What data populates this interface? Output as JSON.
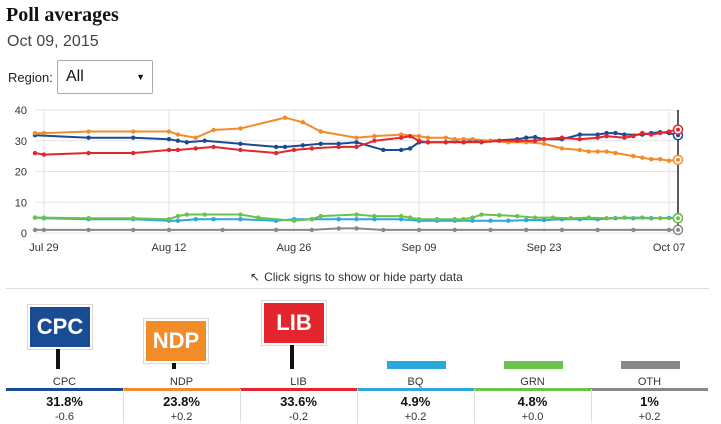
{
  "header": {
    "title": "Poll averages",
    "date": "Oct 09, 2015"
  },
  "region": {
    "label": "Region:",
    "value": "All"
  },
  "hint": "Click signs to show or hide party data",
  "chart_data": {
    "type": "line",
    "x_labels": [
      "Jul 29",
      "Aug 12",
      "Aug 26",
      "Sep 09",
      "Sep 23",
      "Oct 07"
    ],
    "x_label_days": [
      0,
      14,
      28,
      42,
      56,
      70
    ],
    "ylim": [
      0,
      40
    ],
    "yticks": [
      0,
      10,
      20,
      30,
      40
    ],
    "series": [
      {
        "name": "CPC",
        "color": "#1a4c93",
        "points": [
          [
            -1,
            31.8
          ],
          [
            5,
            31
          ],
          [
            10,
            31
          ],
          [
            14,
            30.5
          ],
          [
            15,
            30
          ],
          [
            16,
            29.5
          ],
          [
            18,
            30
          ],
          [
            22,
            29
          ],
          [
            26,
            28
          ],
          [
            27,
            28
          ],
          [
            29,
            28.5
          ],
          [
            31,
            29
          ],
          [
            33,
            29
          ],
          [
            35,
            29.5
          ],
          [
            38,
            27
          ],
          [
            40,
            27
          ],
          [
            41,
            27.5
          ],
          [
            42,
            29.5
          ],
          [
            43,
            29.5
          ],
          [
            45,
            29.5
          ],
          [
            46,
            29.8
          ],
          [
            47,
            29.5
          ],
          [
            48,
            30
          ],
          [
            50,
            30
          ],
          [
            53,
            30.5
          ],
          [
            54,
            31
          ],
          [
            55,
            31.2
          ],
          [
            56,
            30.5
          ],
          [
            58,
            30.5
          ],
          [
            60,
            32
          ],
          [
            62,
            32
          ],
          [
            63,
            32.5
          ],
          [
            64,
            32.5
          ],
          [
            65,
            32
          ],
          [
            67,
            32
          ],
          [
            68,
            32.5
          ],
          [
            69,
            32.8
          ],
          [
            70,
            32.5
          ],
          [
            71,
            31.8
          ]
        ]
      },
      {
        "name": "NDP",
        "color": "#f28c28",
        "points": [
          [
            -1,
            32.5
          ],
          [
            0,
            32.5
          ],
          [
            5,
            33
          ],
          [
            10,
            33
          ],
          [
            14,
            33
          ],
          [
            15,
            32
          ],
          [
            17,
            31
          ],
          [
            19,
            33.5
          ],
          [
            22,
            34
          ],
          [
            27,
            37.5
          ],
          [
            29,
            36
          ],
          [
            31,
            33
          ],
          [
            35,
            31
          ],
          [
            37,
            31.5
          ],
          [
            40,
            32
          ],
          [
            42,
            31.5
          ],
          [
            43,
            31
          ],
          [
            45,
            31
          ],
          [
            46,
            30.5
          ],
          [
            47,
            30.5
          ],
          [
            48,
            30.5
          ],
          [
            50,
            30
          ],
          [
            52,
            29.5
          ],
          [
            54,
            29.5
          ],
          [
            56,
            29
          ],
          [
            58,
            27.5
          ],
          [
            60,
            27
          ],
          [
            61,
            26.5
          ],
          [
            62,
            26.5
          ],
          [
            63,
            26.5
          ],
          [
            64,
            26
          ],
          [
            66,
            25
          ],
          [
            67,
            24.5
          ],
          [
            68,
            24
          ],
          [
            69,
            24
          ],
          [
            70,
            23.5
          ],
          [
            71,
            23.8
          ]
        ]
      },
      {
        "name": "LIB",
        "color": "#e3262d",
        "points": [
          [
            -1,
            26
          ],
          [
            0,
            25.5
          ],
          [
            5,
            26
          ],
          [
            10,
            26
          ],
          [
            14,
            27
          ],
          [
            15,
            27
          ],
          [
            17,
            27.5
          ],
          [
            19,
            28
          ],
          [
            22,
            27
          ],
          [
            26,
            26
          ],
          [
            28,
            27
          ],
          [
            30,
            27.5
          ],
          [
            33,
            28
          ],
          [
            35,
            28
          ],
          [
            37,
            30
          ],
          [
            40,
            31
          ],
          [
            41,
            31.5
          ],
          [
            42,
            30
          ],
          [
            43,
            29.5
          ],
          [
            45,
            29.5
          ],
          [
            47,
            29.5
          ],
          [
            49,
            29.5
          ],
          [
            51,
            30
          ],
          [
            53,
            30
          ],
          [
            55,
            30
          ],
          [
            56,
            30.5
          ],
          [
            58,
            31
          ],
          [
            60,
            30.5
          ],
          [
            62,
            31
          ],
          [
            63,
            31.5
          ],
          [
            65,
            31
          ],
          [
            66,
            31.5
          ],
          [
            67,
            32.5
          ],
          [
            68,
            32
          ],
          [
            69,
            32.5
          ],
          [
            70,
            33
          ],
          [
            71,
            33.6
          ]
        ]
      },
      {
        "name": "BQ",
        "color": "#2aa7dc",
        "points": [
          [
            -1,
            5
          ],
          [
            0,
            4.8
          ],
          [
            5,
            4.5
          ],
          [
            10,
            4.5
          ],
          [
            14,
            4
          ],
          [
            15,
            4
          ],
          [
            17,
            4.5
          ],
          [
            19,
            4.5
          ],
          [
            22,
            4.5
          ],
          [
            26,
            4
          ],
          [
            28,
            4.5
          ],
          [
            30,
            4.5
          ],
          [
            33,
            4.5
          ],
          [
            35,
            4.5
          ],
          [
            37,
            4.5
          ],
          [
            40,
            4.5
          ],
          [
            42,
            4
          ],
          [
            44,
            4
          ],
          [
            46,
            4
          ],
          [
            48,
            4
          ],
          [
            50,
            4
          ],
          [
            52,
            4
          ],
          [
            54,
            4.2
          ],
          [
            56,
            4.2
          ],
          [
            58,
            4.5
          ],
          [
            60,
            4.5
          ],
          [
            62,
            4.5
          ],
          [
            64,
            4.8
          ],
          [
            66,
            4.8
          ],
          [
            68,
            4.8
          ],
          [
            70,
            4.9
          ],
          [
            71,
            4.9
          ]
        ]
      },
      {
        "name": "GRN",
        "color": "#6cc24a",
        "points": [
          [
            -1,
            5
          ],
          [
            0,
            5
          ],
          [
            5,
            4.8
          ],
          [
            10,
            4.8
          ],
          [
            14,
            4.5
          ],
          [
            15,
            5.5
          ],
          [
            16,
            6
          ],
          [
            18,
            6
          ],
          [
            22,
            6
          ],
          [
            24,
            5
          ],
          [
            28,
            4
          ],
          [
            30,
            4.5
          ],
          [
            31,
            5.5
          ],
          [
            35,
            6
          ],
          [
            37,
            5.5
          ],
          [
            40,
            5.5
          ],
          [
            41,
            5
          ],
          [
            42,
            4.5
          ],
          [
            44,
            4.5
          ],
          [
            46,
            4.5
          ],
          [
            47,
            4.5
          ],
          [
            48,
            5
          ],
          [
            49,
            6
          ],
          [
            51,
            5.8
          ],
          [
            53,
            5.5
          ],
          [
            55,
            5
          ],
          [
            57,
            5
          ],
          [
            59,
            4.8
          ],
          [
            61,
            5
          ],
          [
            63,
            4.8
          ],
          [
            65,
            5
          ],
          [
            67,
            5
          ],
          [
            69,
            4.8
          ],
          [
            71,
            4.8
          ]
        ]
      },
      {
        "name": "OTH",
        "color": "#888888",
        "points": [
          [
            -1,
            1
          ],
          [
            0,
            1
          ],
          [
            5,
            1
          ],
          [
            10,
            1
          ],
          [
            14,
            1
          ],
          [
            20,
            1
          ],
          [
            26,
            1
          ],
          [
            30,
            1
          ],
          [
            33,
            1.5
          ],
          [
            35,
            1.5
          ],
          [
            38,
            1
          ],
          [
            42,
            1
          ],
          [
            46,
            1
          ],
          [
            50,
            1
          ],
          [
            54,
            1
          ],
          [
            58,
            1
          ],
          [
            62,
            1
          ],
          [
            66,
            1
          ],
          [
            70,
            1
          ],
          [
            71,
            1
          ]
        ]
      }
    ]
  },
  "parties": [
    {
      "name": "CPC",
      "badge": "CPC",
      "pct": "31.8%",
      "change": "-0.6",
      "color": "#1a4c93",
      "has_badge": true
    },
    {
      "name": "NDP",
      "badge": "NDP",
      "pct": "23.8%",
      "change": "+0.2",
      "color": "#f28c28",
      "has_badge": true
    },
    {
      "name": "LIB",
      "badge": "LIB",
      "pct": "33.6%",
      "change": "-0.2",
      "color": "#e3262d",
      "has_badge": true
    },
    {
      "name": "BQ",
      "badge": "",
      "pct": "4.9%",
      "change": "+0.2",
      "color": "#2aa7dc",
      "has_badge": false
    },
    {
      "name": "GRN",
      "badge": "",
      "pct": "4.8%",
      "change": "+0.0",
      "color": "#6cc24a",
      "has_badge": false
    },
    {
      "name": "OTH",
      "badge": "",
      "pct": "1%",
      "change": "+0.2",
      "color": "#888888",
      "has_badge": false
    }
  ]
}
